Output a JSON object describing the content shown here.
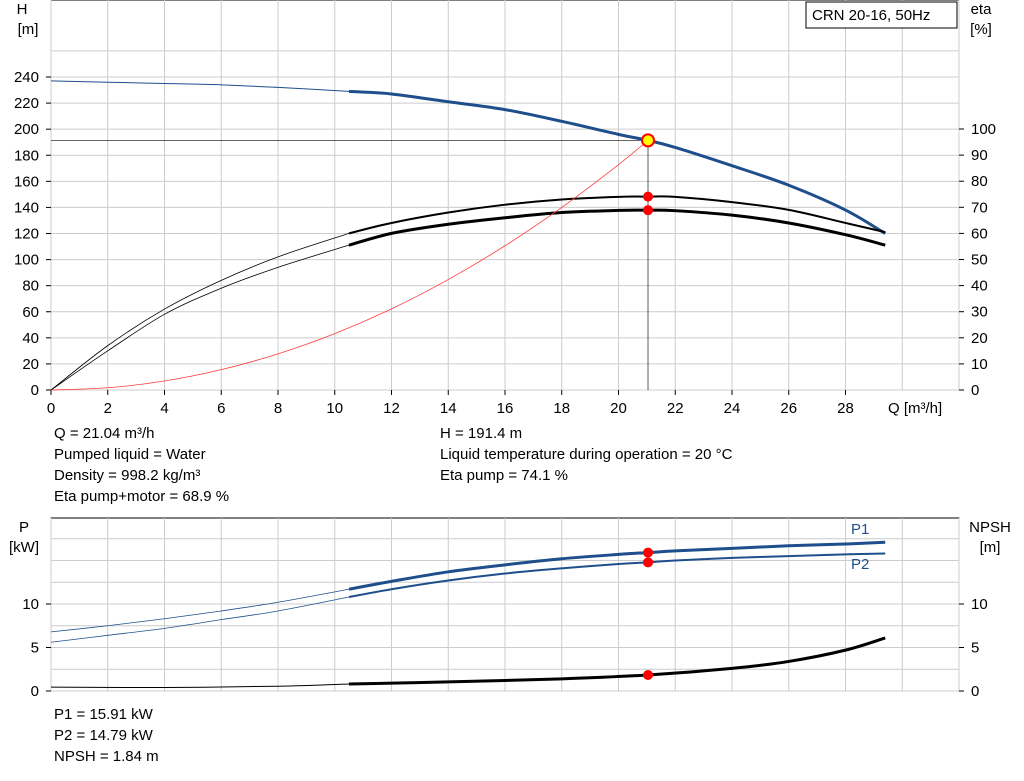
{
  "title_box": "CRN 20-16, 50Hz",
  "upper_chart": {
    "left_axis": {
      "label": "H",
      "unit": "[m]"
    },
    "right_axis": {
      "label": "eta",
      "unit": "[%]"
    },
    "x_axis_label": "Q [m³/h]"
  },
  "lower_chart": {
    "left_axis": {
      "label": "P",
      "unit": "[kW]"
    },
    "right_axis": {
      "label": "NPSH",
      "unit": "[m]"
    },
    "series_labels": {
      "p1": "P1",
      "p2": "P2"
    }
  },
  "info_upper": {
    "q": "Q = 21.04 m³/h",
    "liquid": "Pumped liquid = Water",
    "density": "Density = 998.2 kg/m³",
    "eta_pump_motor": "Eta pump+motor = 68.9 %",
    "h": "H = 191.4 m",
    "temperature": "Liquid temperature during operation = 20 °C",
    "eta_pump": "Eta pump = 74.1 %"
  },
  "info_lower": {
    "p1": "P1 = 15.91 kW",
    "p2": "P2 = 14.79 kW",
    "npsh": "NPSH = 1.84 m"
  },
  "colors": {
    "head": "#1f4e8c",
    "power": "#1f4e8c",
    "efficiency": "#000000",
    "npsh": "#000000",
    "system_curve": "#ff3b3b",
    "duty_point": "#ff0000",
    "duty_point_fill": "#ffff00",
    "grid": "#cccccc"
  },
  "chart_data": [
    {
      "type": "line",
      "name": "head-and-efficiency",
      "xlabel": "Q [m³/h]",
      "ylabel": "H [m]",
      "y2label": "eta [%]",
      "xlim": [
        0,
        32
      ],
      "ylim": [
        0,
        260
      ],
      "y2lim": [
        0,
        130
      ],
      "x_ticks": [
        0,
        2,
        4,
        6,
        8,
        10,
        12,
        14,
        16,
        18,
        20,
        22,
        24,
        26,
        28
      ],
      "y_ticks": [
        0,
        20,
        40,
        60,
        80,
        100,
        120,
        140,
        160,
        180,
        200,
        220,
        240
      ],
      "y2_ticks": [
        0,
        10,
        20,
        30,
        40,
        50,
        60,
        70,
        80,
        90,
        100
      ],
      "grid": true,
      "series": [
        {
          "name": "H",
          "axis": "left",
          "operating_from": 10.5,
          "points": [
            [
              0,
              237
            ],
            [
              2,
              236
            ],
            [
              4,
              235
            ],
            [
              6,
              234
            ],
            [
              8,
              232
            ],
            [
              10.5,
              229
            ],
            [
              12,
              227
            ],
            [
              14,
              221
            ],
            [
              16,
              215
            ],
            [
              18,
              206
            ],
            [
              20,
              196
            ],
            [
              21.04,
              191.4
            ],
            [
              22,
              186
            ],
            [
              24,
              172
            ],
            [
              26,
              157
            ],
            [
              28,
              138
            ],
            [
              29.4,
              120
            ]
          ]
        },
        {
          "name": "Eta pump",
          "axis": "right",
          "operating_from": 10.5,
          "points": [
            [
              0,
              0
            ],
            [
              2,
              17
            ],
            [
              4,
              31
            ],
            [
              6,
              42
            ],
            [
              8,
              51
            ],
            [
              10.5,
              60
            ],
            [
              12,
              64
            ],
            [
              14,
              68
            ],
            [
              16,
              71
            ],
            [
              18,
              73
            ],
            [
              20,
              74
            ],
            [
              21.04,
              74.1
            ],
            [
              22,
              74
            ],
            [
              24,
              72
            ],
            [
              26,
              69
            ],
            [
              28,
              64
            ],
            [
              29.4,
              60.5
            ]
          ]
        },
        {
          "name": "Eta pump+motor",
          "axis": "right",
          "operating_from": 10.5,
          "points": [
            [
              0,
              0
            ],
            [
              2,
              15
            ],
            [
              4,
              29
            ],
            [
              6,
              39
            ],
            [
              8,
              47
            ],
            [
              10.5,
              55.5
            ],
            [
              12,
              60
            ],
            [
              14,
              63.5
            ],
            [
              16,
              66
            ],
            [
              18,
              68
            ],
            [
              20,
              68.8
            ],
            [
              21.04,
              68.9
            ],
            [
              22,
              68.7
            ],
            [
              24,
              67
            ],
            [
              26,
              64
            ],
            [
              28,
              59.5
            ],
            [
              29.4,
              55.5
            ]
          ]
        },
        {
          "name": "System curve",
          "axis": "left",
          "points": [
            [
              0,
              0
            ],
            [
              2,
              1.7
            ],
            [
              4,
              6.9
            ],
            [
              6,
              15.6
            ],
            [
              8,
              27.7
            ],
            [
              10,
              43.2
            ],
            [
              12,
              62.2
            ],
            [
              14,
              84.7
            ],
            [
              16,
              110.6
            ],
            [
              18,
              140
            ],
            [
              20,
              172.8
            ],
            [
              21.04,
              191.4
            ]
          ]
        }
      ],
      "duty_point": {
        "q": 21.04,
        "h": 191.4,
        "eta_pump": 74.1,
        "eta_pump_motor": 68.9
      }
    },
    {
      "type": "line",
      "name": "power-and-npsh",
      "ylabel": "P [kW]",
      "y2label": "NPSH [m]",
      "xlim": [
        0,
        32
      ],
      "ylim": [
        0,
        20
      ],
      "y2lim": [
        0,
        20
      ],
      "y_ticks": [
        0,
        5,
        10
      ],
      "y2_ticks": [
        0,
        5,
        10
      ],
      "grid": true,
      "series": [
        {
          "name": "P1",
          "axis": "left",
          "operating_from": 10.5,
          "points": [
            [
              0,
              6.8
            ],
            [
              2,
              7.5
            ],
            [
              4,
              8.3
            ],
            [
              6,
              9.2
            ],
            [
              8,
              10.2
            ],
            [
              10.5,
              11.7
            ],
            [
              12,
              12.6
            ],
            [
              14,
              13.7
            ],
            [
              16,
              14.5
            ],
            [
              18,
              15.2
            ],
            [
              20,
              15.7
            ],
            [
              21.04,
              15.91
            ],
            [
              22,
              16.1
            ],
            [
              24,
              16.4
            ],
            [
              26,
              16.7
            ],
            [
              28,
              16.9
            ],
            [
              29.4,
              17.1
            ]
          ]
        },
        {
          "name": "P2",
          "axis": "left",
          "operating_from": 10.5,
          "points": [
            [
              0,
              5.6
            ],
            [
              2,
              6.4
            ],
            [
              4,
              7.2
            ],
            [
              6,
              8.2
            ],
            [
              8,
              9.2
            ],
            [
              10.5,
              10.8
            ],
            [
              12,
              11.7
            ],
            [
              14,
              12.7
            ],
            [
              16,
              13.5
            ],
            [
              18,
              14.1
            ],
            [
              20,
              14.6
            ],
            [
              21.04,
              14.79
            ],
            [
              22,
              15.0
            ],
            [
              24,
              15.3
            ],
            [
              26,
              15.5
            ],
            [
              28,
              15.7
            ],
            [
              29.4,
              15.8
            ]
          ]
        },
        {
          "name": "NPSH",
          "axis": "right",
          "operating_from": 10.5,
          "points": [
            [
              0,
              0.45
            ],
            [
              4,
              0.4
            ],
            [
              8,
              0.55
            ],
            [
              10.5,
              0.8
            ],
            [
              14,
              1.05
            ],
            [
              18,
              1.4
            ],
            [
              21.04,
              1.84
            ],
            [
              24,
              2.6
            ],
            [
              26,
              3.4
            ],
            [
              28,
              4.7
            ],
            [
              29.4,
              6.1
            ]
          ]
        }
      ],
      "duty_point": {
        "q": 21.04,
        "p1": 15.91,
        "p2": 14.79,
        "npsh": 1.84
      }
    }
  ]
}
